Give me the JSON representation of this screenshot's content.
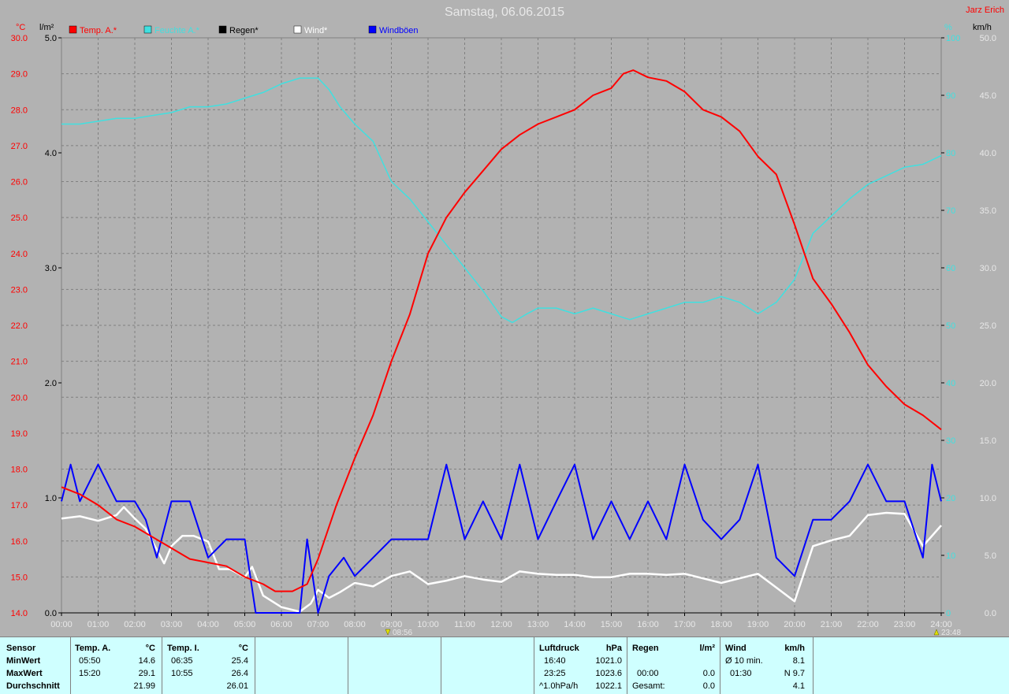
{
  "title": "Samstag, 06.06.2015",
  "author": "Jarz Erich",
  "axes": {
    "left1_unit": "°C",
    "left2_unit": "l/m²",
    "right1_unit": "%",
    "right2_unit": "km/h",
    "temp_ticks": [
      "14.0",
      "15.0",
      "16.0",
      "17.0",
      "18.0",
      "19.0",
      "20.0",
      "21.0",
      "22.0",
      "23.0",
      "24.0",
      "25.0",
      "26.0",
      "27.0",
      "28.0",
      "29.0",
      "30.0"
    ],
    "rain_ticks": [
      "0.0",
      "1.0",
      "2.0",
      "3.0",
      "4.0",
      "5.0"
    ],
    "hum_ticks": [
      "0",
      "10",
      "20",
      "30",
      "40",
      "50",
      "60",
      "70",
      "80",
      "90",
      "100"
    ],
    "wind_ticks": [
      "0.0",
      "5.0",
      "10.0",
      "15.0",
      "20.0",
      "25.0",
      "30.0",
      "35.0",
      "40.0",
      "45.0",
      "50.0"
    ],
    "x_ticks": [
      "00:00",
      "01:00",
      "02:00",
      "03:00",
      "04:00",
      "05:00",
      "06:00",
      "07:00",
      "08:00",
      "09:00",
      "10:00",
      "11:00",
      "12:00",
      "13:00",
      "14:00",
      "15:00",
      "16:00",
      "17:00",
      "18:00",
      "19:00",
      "20:00",
      "21:00",
      "22:00",
      "23:00",
      "24:00"
    ],
    "marker_left": "08:56",
    "marker_right": "23:48"
  },
  "colors": {
    "temp": "#ff0000",
    "humidity": "#40e0e0",
    "rain": "#000000",
    "wind": "#ffffff",
    "gust": "#0000ff",
    "background": "#b2b2b2",
    "grid": "#808080",
    "stats_bg": "#cfffff"
  },
  "chart_data": {
    "type": "line",
    "x_range_hours": [
      0,
      24
    ],
    "series": [
      {
        "name": "Temp. A.*",
        "axis": "temp",
        "ylim": [
          14,
          30
        ],
        "points": [
          [
            0,
            17.5
          ],
          [
            0.5,
            17.3
          ],
          [
            1,
            17.0
          ],
          [
            1.5,
            16.6
          ],
          [
            2,
            16.4
          ],
          [
            2.5,
            16.1
          ],
          [
            3,
            15.8
          ],
          [
            3.5,
            15.5
          ],
          [
            4,
            15.4
          ],
          [
            4.5,
            15.3
          ],
          [
            5,
            15.0
          ],
          [
            5.5,
            14.8
          ],
          [
            5.83,
            14.6
          ],
          [
            6.3,
            14.6
          ],
          [
            6.7,
            14.8
          ],
          [
            7,
            15.5
          ],
          [
            7.5,
            17.0
          ],
          [
            8,
            18.3
          ],
          [
            8.5,
            19.5
          ],
          [
            9,
            21.0
          ],
          [
            9.5,
            22.3
          ],
          [
            10,
            24.0
          ],
          [
            10.5,
            25.0
          ],
          [
            11,
            25.7
          ],
          [
            11.5,
            26.3
          ],
          [
            12,
            26.9
          ],
          [
            12.5,
            27.3
          ],
          [
            13,
            27.6
          ],
          [
            13.5,
            27.8
          ],
          [
            14,
            28.0
          ],
          [
            14.5,
            28.4
          ],
          [
            15,
            28.6
          ],
          [
            15.33,
            29.0
          ],
          [
            15.6,
            29.1
          ],
          [
            16,
            28.9
          ],
          [
            16.5,
            28.8
          ],
          [
            17,
            28.5
          ],
          [
            17.5,
            28.0
          ],
          [
            18,
            27.8
          ],
          [
            18.5,
            27.4
          ],
          [
            19,
            26.7
          ],
          [
            19.5,
            26.2
          ],
          [
            20,
            24.8
          ],
          [
            20.5,
            23.3
          ],
          [
            21,
            22.6
          ],
          [
            21.5,
            21.8
          ],
          [
            22,
            20.9
          ],
          [
            22.5,
            20.3
          ],
          [
            23,
            19.8
          ],
          [
            23.5,
            19.5
          ],
          [
            24,
            19.1
          ]
        ]
      },
      {
        "name": "Feuchte A.*",
        "axis": "humidity",
        "ylim": [
          0,
          100
        ],
        "points": [
          [
            0,
            85
          ],
          [
            0.5,
            85
          ],
          [
            1,
            85.5
          ],
          [
            1.5,
            86
          ],
          [
            2,
            86
          ],
          [
            2.5,
            86.5
          ],
          [
            3,
            87
          ],
          [
            3.5,
            88
          ],
          [
            4,
            88
          ],
          [
            4.5,
            88.5
          ],
          [
            5,
            89.5
          ],
          [
            5.5,
            90.5
          ],
          [
            6,
            92
          ],
          [
            6.5,
            93
          ],
          [
            7,
            93
          ],
          [
            7.3,
            91
          ],
          [
            7.6,
            88
          ],
          [
            8,
            85
          ],
          [
            8.5,
            82
          ],
          [
            9,
            75
          ],
          [
            9.5,
            72
          ],
          [
            10,
            68
          ],
          [
            10.5,
            64
          ],
          [
            11,
            60
          ],
          [
            11.5,
            56
          ],
          [
            12,
            51.5
          ],
          [
            12.3,
            50.5
          ],
          [
            12.7,
            52
          ],
          [
            13,
            53
          ],
          [
            13.5,
            53
          ],
          [
            14,
            52
          ],
          [
            14.5,
            53
          ],
          [
            15,
            52
          ],
          [
            15.5,
            51
          ],
          [
            16,
            52
          ],
          [
            16.5,
            53
          ],
          [
            17,
            54
          ],
          [
            17.5,
            54
          ],
          [
            18,
            55
          ],
          [
            18.5,
            54
          ],
          [
            19,
            52
          ],
          [
            19.5,
            54
          ],
          [
            20,
            58
          ],
          [
            20.5,
            66
          ],
          [
            21,
            69
          ],
          [
            21.5,
            72
          ],
          [
            22,
            74.5
          ],
          [
            22.5,
            76
          ],
          [
            23,
            77.5
          ],
          [
            23.5,
            78
          ],
          [
            24,
            79.5
          ]
        ]
      },
      {
        "name": "Regen*",
        "axis": "rain",
        "ylim": [
          0,
          5
        ],
        "points": [
          [
            0,
            0
          ],
          [
            24,
            0
          ]
        ]
      },
      {
        "name": "Wind*",
        "axis": "wind",
        "ylim": [
          0,
          50
        ],
        "points": [
          [
            0,
            8.2
          ],
          [
            0.5,
            8.4
          ],
          [
            1,
            8.0
          ],
          [
            1.5,
            8.5
          ],
          [
            1.7,
            9.2
          ],
          [
            2,
            8.2
          ],
          [
            2.3,
            7.3
          ],
          [
            2.6,
            5.5
          ],
          [
            2.8,
            4.3
          ],
          [
            3,
            5.8
          ],
          [
            3.3,
            6.7
          ],
          [
            3.6,
            6.7
          ],
          [
            4,
            6.2
          ],
          [
            4.3,
            3.8
          ],
          [
            4.6,
            3.8
          ],
          [
            5,
            3.1
          ],
          [
            5.2,
            4.0
          ],
          [
            5.5,
            1.5
          ],
          [
            6,
            0.5
          ],
          [
            6.5,
            0.1
          ],
          [
            6.8,
            0.8
          ],
          [
            7,
            2.0
          ],
          [
            7.3,
            1.3
          ],
          [
            7.6,
            1.8
          ],
          [
            8,
            2.6
          ],
          [
            8.5,
            2.3
          ],
          [
            9,
            3.2
          ],
          [
            9.5,
            3.6
          ],
          [
            10,
            2.5
          ],
          [
            10.5,
            2.8
          ],
          [
            11,
            3.2
          ],
          [
            11.5,
            2.9
          ],
          [
            12,
            2.7
          ],
          [
            12.5,
            3.6
          ],
          [
            13,
            3.4
          ],
          [
            13.5,
            3.3
          ],
          [
            14,
            3.3
          ],
          [
            14.5,
            3.1
          ],
          [
            15,
            3.1
          ],
          [
            15.5,
            3.4
          ],
          [
            16,
            3.4
          ],
          [
            16.5,
            3.3
          ],
          [
            17,
            3.4
          ],
          [
            17.5,
            3.0
          ],
          [
            18,
            2.6
          ],
          [
            18.5,
            3.0
          ],
          [
            19,
            3.4
          ],
          [
            19.5,
            2.2
          ],
          [
            20,
            1.0
          ],
          [
            20.5,
            5.8
          ],
          [
            21,
            6.3
          ],
          [
            21.5,
            6.7
          ],
          [
            22,
            8.5
          ],
          [
            22.5,
            8.7
          ],
          [
            23,
            8.6
          ],
          [
            23.5,
            5.8
          ],
          [
            24,
            7.6
          ]
        ]
      },
      {
        "name": "Windböen",
        "axis": "wind",
        "ylim": [
          0,
          50
        ],
        "points": [
          [
            0,
            9.7
          ],
          [
            0.25,
            12.9
          ],
          [
            0.5,
            9.7
          ],
          [
            1,
            12.9
          ],
          [
            1.5,
            9.7
          ],
          [
            2,
            9.7
          ],
          [
            2.3,
            8.1
          ],
          [
            2.6,
            4.8
          ],
          [
            3,
            9.7
          ],
          [
            3.5,
            9.7
          ],
          [
            4,
            4.8
          ],
          [
            4.5,
            6.4
          ],
          [
            5,
            6.4
          ],
          [
            5.3,
            0.0
          ],
          [
            6,
            0.0
          ],
          [
            6.5,
            0.0
          ],
          [
            6.7,
            6.4
          ],
          [
            7,
            0.0
          ],
          [
            7.3,
            3.2
          ],
          [
            7.7,
            4.8
          ],
          [
            8,
            3.2
          ],
          [
            8.5,
            4.8
          ],
          [
            9,
            6.4
          ],
          [
            9.5,
            6.4
          ],
          [
            10,
            6.4
          ],
          [
            10.5,
            12.9
          ],
          [
            11,
            6.4
          ],
          [
            11.5,
            9.7
          ],
          [
            12,
            6.4
          ],
          [
            12.5,
            12.9
          ],
          [
            13,
            6.4
          ],
          [
            13.5,
            9.7
          ],
          [
            14,
            12.9
          ],
          [
            14.5,
            6.4
          ],
          [
            15,
            9.7
          ],
          [
            15.5,
            6.4
          ],
          [
            16,
            9.7
          ],
          [
            16.5,
            6.4
          ],
          [
            17,
            12.9
          ],
          [
            17.5,
            8.1
          ],
          [
            18,
            6.4
          ],
          [
            18.5,
            8.1
          ],
          [
            19,
            12.9
          ],
          [
            19.5,
            4.8
          ],
          [
            20,
            3.2
          ],
          [
            20.5,
            8.1
          ],
          [
            21,
            8.1
          ],
          [
            21.5,
            9.7
          ],
          [
            22,
            12.9
          ],
          [
            22.5,
            9.7
          ],
          [
            23,
            9.7
          ],
          [
            23.5,
            4.8
          ],
          [
            23.75,
            12.9
          ],
          [
            24,
            9.7
          ]
        ]
      }
    ]
  },
  "stats": {
    "sensor": {
      "header": "Sensor",
      "rows": [
        "MinWert",
        "MaxWert",
        "Durchschnitt"
      ]
    },
    "tempA": {
      "header": "Temp. A.",
      "unit": "°C",
      "rows": [
        [
          "05:50",
          "14.6"
        ],
        [
          "15:20",
          "29.1"
        ],
        [
          "",
          "21.99"
        ]
      ]
    },
    "tempI": {
      "header": "Temp. I.",
      "unit": "°C",
      "rows": [
        [
          "06:35",
          "25.4"
        ],
        [
          "10:55",
          "26.4"
        ],
        [
          "",
          "26.01"
        ]
      ]
    },
    "pressure": {
      "header": "Luftdruck",
      "unit": "hPa",
      "rows": [
        [
          "16:40",
          "1021.0"
        ],
        [
          "23:25",
          "1023.6"
        ],
        [
          "^1.0hPa/h",
          "1022.1"
        ]
      ]
    },
    "rain": {
      "header": "Regen",
      "unit": "l/m²",
      "rows": [
        [
          "",
          ""
        ],
        [
          "00:00",
          "0.0"
        ],
        [
          "Gesamt:",
          "0.0"
        ]
      ]
    },
    "wind": {
      "header": "Wind",
      "unit": "km/h",
      "rows": [
        [
          "Ø 10 min.",
          "8.1"
        ],
        [
          "01:30",
          "N 9.7"
        ],
        [
          "",
          "4.1"
        ]
      ]
    }
  }
}
